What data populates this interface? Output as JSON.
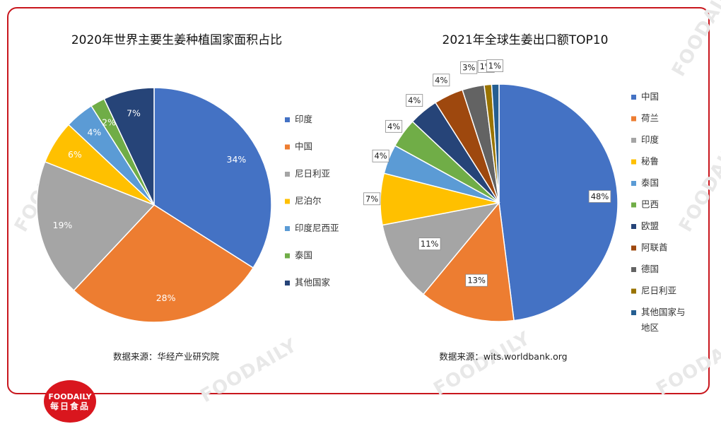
{
  "brand": {
    "logo_line1": "FOODAILY",
    "logo_line2": "每日食品",
    "accent_color": "#c8161d"
  },
  "chart_data": [
    {
      "type": "pie",
      "title": "2020年世界主要生姜种植国家面积占比",
      "source": "数据来源：华经产业研究院",
      "categories": [
        "印度",
        "中国",
        "尼日利亚",
        "尼泊尔",
        "印度尼西亚",
        "泰国",
        "其他国家"
      ],
      "values": [
        34,
        28,
        19,
        6,
        4,
        2,
        7
      ],
      "labels": [
        "34%",
        "28%",
        "19%",
        "6%",
        "4%",
        "2%",
        "7%"
      ],
      "colors": [
        "#4472c4",
        "#ed7d31",
        "#a5a5a5",
        "#ffc000",
        "#5b9bd5",
        "#70ad47",
        "#264478"
      ],
      "legend": "right"
    },
    {
      "type": "pie",
      "title": "2021年全球生姜出口额TOP10",
      "source": "数据来源：wits.worldbank.org",
      "categories": [
        "中国",
        "荷兰",
        "印度",
        "秘鲁",
        "泰国",
        "巴西",
        "欧盟",
        "阿联酋",
        "德国",
        "尼日利亚",
        "其他国家与地区"
      ],
      "legend_lines": [
        [
          "中国"
        ],
        [
          "荷兰"
        ],
        [
          "印度"
        ],
        [
          "秘鲁"
        ],
        [
          "泰国"
        ],
        [
          "巴西"
        ],
        [
          "欧盟"
        ],
        [
          "阿联酋"
        ],
        [
          "德国"
        ],
        [
          "尼日利亚"
        ],
        [
          "其他国家与",
          "地区"
        ]
      ],
      "values": [
        48,
        13,
        11,
        7,
        4,
        4,
        4,
        4,
        3,
        1,
        1
      ],
      "labels": [
        "48%",
        "13%",
        "11%",
        "7%",
        "4%",
        "4%",
        "4%",
        "4%",
        "3%",
        "1%",
        "1%"
      ],
      "colors": [
        "#4472c4",
        "#ed7d31",
        "#a5a5a5",
        "#ffc000",
        "#5b9bd5",
        "#70ad47",
        "#264478",
        "#9e480e",
        "#636363",
        "#997300",
        "#255e91"
      ],
      "legend": "right"
    }
  ]
}
